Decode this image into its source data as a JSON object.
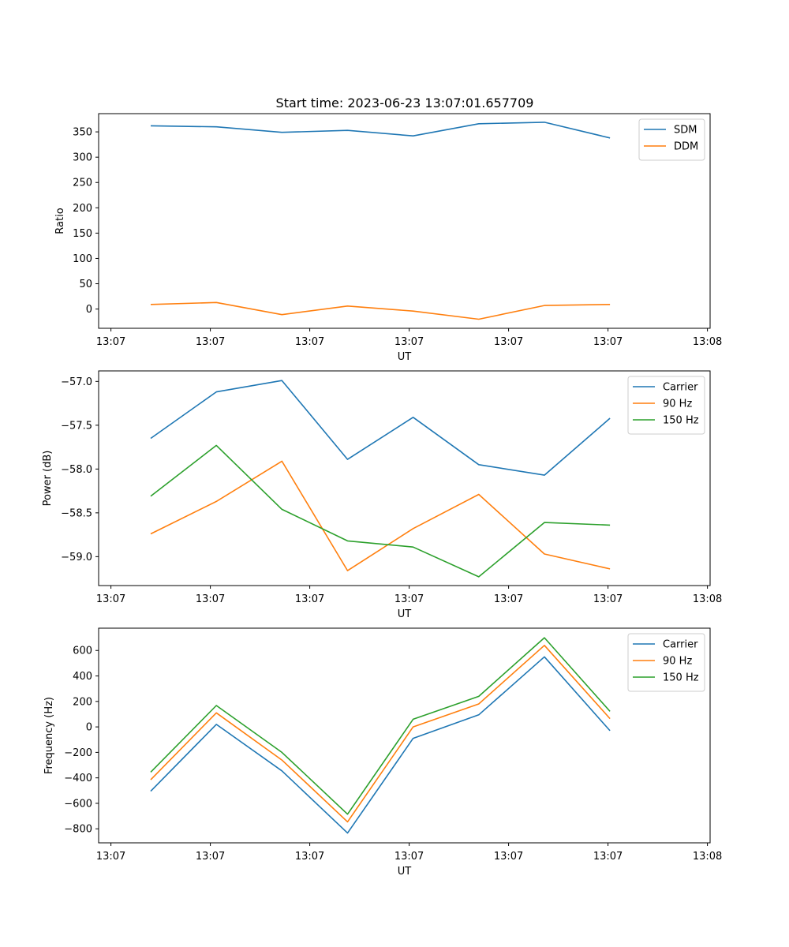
{
  "figure": {
    "title": "Start time: 2023-06-23 13:07:01.657709"
  },
  "chart_data": [
    {
      "type": "line",
      "title": "Start time: 2023-06-23 13:07:01.657709",
      "xlabel": "UT",
      "ylabel": "Ratio",
      "x_tick_labels": [
        "13:07",
        "13:07",
        "13:07",
        "13:07",
        "13:07",
        "13:07",
        "13:08"
      ],
      "xlim": [
        0,
        30
      ],
      "ylim": [
        -38,
        386
      ],
      "y_ticks": [
        0,
        50,
        100,
        150,
        200,
        250,
        300,
        350
      ],
      "x_seconds": [
        2.5,
        5.8,
        9.1,
        12.4,
        15.7,
        19.0,
        22.3,
        25.6
      ],
      "legend_position": "top-right",
      "grid": false,
      "series": [
        {
          "name": "SDM",
          "color": "#1f77b4",
          "values": [
            362,
            360,
            349,
            353,
            342,
            366,
            369,
            338
          ]
        },
        {
          "name": "DDM",
          "color": "#ff7f0e",
          "values": [
            9,
            13,
            -11,
            6,
            -4,
            -20,
            7,
            9
          ]
        }
      ]
    },
    {
      "type": "line",
      "title": "",
      "xlabel": "UT",
      "ylabel": "Power (dB)",
      "x_tick_labels": [
        "13:07",
        "13:07",
        "13:07",
        "13:07",
        "13:07",
        "13:07",
        "13:08"
      ],
      "xlim": [
        0,
        30
      ],
      "ylim": [
        -59.33,
        -56.88
      ],
      "y_ticks": [
        -59.0,
        -58.5,
        -58.0,
        -57.5,
        -57.0
      ],
      "y_tick_labels": [
        "−59.0",
        "−58.5",
        "−58.0",
        "−57.5",
        "−57.0"
      ],
      "x_seconds": [
        2.5,
        5.8,
        9.1,
        12.4,
        15.7,
        19.0,
        22.3,
        25.6
      ],
      "legend_position": "top-right",
      "grid": false,
      "series": [
        {
          "name": "Carrier",
          "color": "#1f77b4",
          "values": [
            -57.65,
            -57.12,
            -56.99,
            -57.89,
            -57.41,
            -57.95,
            -58.07,
            -57.42
          ]
        },
        {
          "name": "90 Hz",
          "color": "#ff7f0e",
          "values": [
            -58.74,
            -58.37,
            -57.91,
            -59.16,
            -58.68,
            -58.29,
            -58.97,
            -59.14
          ]
        },
        {
          "name": "150 Hz",
          "color": "#2ca02c",
          "values": [
            -58.31,
            -57.73,
            -58.46,
            -58.82,
            -58.89,
            -59.23,
            -58.61,
            -58.64
          ]
        }
      ]
    },
    {
      "type": "line",
      "title": "",
      "xlabel": "UT",
      "ylabel": "Frequency (Hz)",
      "x_tick_labels": [
        "13:07",
        "13:07",
        "13:07",
        "13:07",
        "13:07",
        "13:07",
        "13:08"
      ],
      "xlim": [
        0,
        30
      ],
      "ylim": [
        -910,
        775
      ],
      "y_ticks": [
        -800,
        -600,
        -400,
        -200,
        0,
        200,
        400,
        600
      ],
      "y_tick_labels": [
        "−800",
        "−600",
        "−400",
        "−200",
        "0",
        "200",
        "400",
        "600"
      ],
      "x_seconds": [
        2.5,
        5.8,
        9.1,
        12.4,
        15.7,
        19.0,
        22.3,
        25.6
      ],
      "legend_position": "top-right",
      "grid": false,
      "series": [
        {
          "name": "Carrier",
          "color": "#1f77b4",
          "values": [
            -505,
            20,
            -345,
            -833,
            -90,
            95,
            550,
            -30
          ]
        },
        {
          "name": "90 Hz",
          "color": "#ff7f0e",
          "values": [
            -415,
            110,
            -260,
            -745,
            0,
            180,
            640,
            65
          ]
        },
        {
          "name": "150 Hz",
          "color": "#2ca02c",
          "values": [
            -355,
            168,
            -200,
            -685,
            60,
            240,
            700,
            122
          ]
        }
      ]
    }
  ]
}
